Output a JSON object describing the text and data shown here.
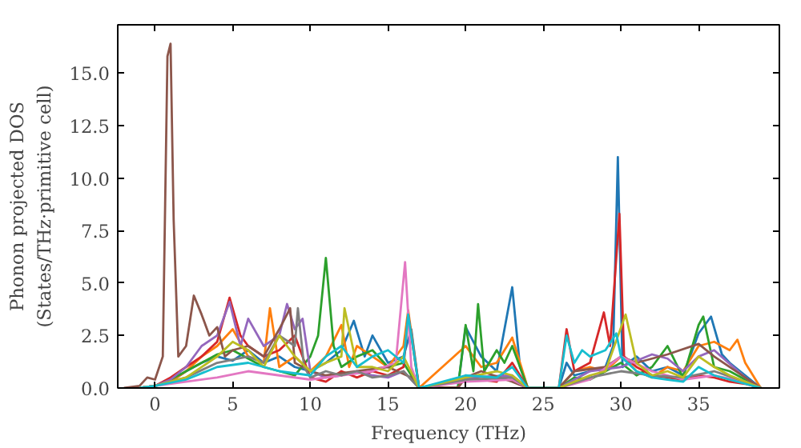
{
  "chart_data": {
    "type": "line",
    "xlabel": "Frequency (THz)",
    "ylabel": "Phonon projected DOS\n(States/THz·primitive cell)",
    "xlim": [
      -2.4,
      40.2
    ],
    "ylim": [
      0,
      17.3
    ],
    "xticks": [
      0,
      5,
      10,
      15,
      20,
      25,
      30,
      35
    ],
    "yticks": [
      {
        "value": 0,
        "label": "0.0"
      },
      {
        "value": 2.5,
        "label": "2.5"
      },
      {
        "value": 5,
        "label": "5.0"
      },
      {
        "value": 7.5,
        "label": "7.5"
      },
      {
        "value": 10,
        "label": "10.0"
      },
      {
        "value": 12.5,
        "label": "12.5"
      },
      {
        "value": 15,
        "label": "15.0"
      }
    ],
    "grid": false,
    "series": [
      {
        "color": "#1f77b4",
        "x": [
          -1,
          0,
          1,
          2,
          3,
          4,
          5,
          6,
          7,
          8,
          9,
          10,
          11,
          12,
          12.8,
          13.5,
          14,
          15,
          16,
          16.5,
          17,
          19.5,
          20,
          21,
          22,
          23,
          23.5,
          24,
          26,
          26.5,
          27,
          28,
          29,
          29.5,
          29.8,
          30.1,
          31,
          32,
          33,
          34,
          35,
          35.8,
          36.5,
          37,
          38,
          39
        ],
        "values": [
          0,
          0.1,
          0.3,
          0.8,
          1.2,
          1.5,
          1.3,
          1.8,
          1.2,
          1.5,
          1.0,
          0.8,
          1.2,
          1.8,
          3.2,
          1.5,
          2.5,
          1.2,
          1.5,
          2.8,
          0,
          0,
          2.9,
          1.5,
          0.8,
          4.8,
          1.0,
          0,
          0,
          1.2,
          0.6,
          0.8,
          1.0,
          2.0,
          11.0,
          1.0,
          1.5,
          0.8,
          1.0,
          0.6,
          2.6,
          3.4,
          1.6,
          1.2,
          0.6,
          0
        ]
      },
      {
        "color": "#ff7f0e",
        "x": [
          -1,
          0,
          1,
          2,
          3,
          4,
          5,
          6,
          7,
          7.4,
          8,
          9,
          10,
          11,
          12,
          12.5,
          13,
          14,
          15,
          16,
          16.3,
          17,
          20,
          21,
          22,
          23,
          24,
          26,
          27,
          28,
          29,
          30,
          30.5,
          31,
          32,
          33,
          34,
          35,
          36,
          37,
          37.5,
          38,
          39
        ],
        "values": [
          0,
          0.1,
          0.3,
          0.8,
          1.5,
          2.0,
          2.8,
          1.5,
          1.2,
          3.8,
          1.0,
          1.5,
          0.8,
          1.5,
          3.0,
          1.0,
          2.0,
          1.5,
          1.0,
          2.0,
          3.7,
          0,
          2.0,
          1.0,
          1.2,
          2.4,
          0,
          0,
          0.8,
          1.0,
          0.8,
          1.5,
          1.2,
          0.8,
          0.5,
          1.0,
          0.8,
          2.0,
          2.2,
          1.8,
          2.3,
          1.2,
          0
        ]
      },
      {
        "color": "#2ca02c",
        "x": [
          -1,
          0,
          1,
          2,
          3,
          4,
          5,
          6,
          7,
          8,
          9,
          10,
          10.5,
          11,
          11.5,
          12,
          13,
          14,
          15,
          16,
          17,
          19.5,
          20,
          20.5,
          20.8,
          21.2,
          22,
          22.5,
          23,
          24,
          26,
          27,
          28,
          29,
          30,
          31,
          32,
          33,
          34,
          35,
          35.3,
          36,
          37,
          38,
          39
        ],
        "values": [
          0,
          0.1,
          0.4,
          0.8,
          1.2,
          1.6,
          1.8,
          1.4,
          1.0,
          0.8,
          0.6,
          1.5,
          2.5,
          6.2,
          2.0,
          1.0,
          1.5,
          1.8,
          1.0,
          1.2,
          0,
          0,
          3.0,
          0.8,
          4.0,
          0.8,
          1.8,
          1.2,
          2.0,
          0,
          0,
          0.5,
          0.4,
          0.8,
          1.2,
          0.6,
          1.0,
          2.0,
          0.5,
          3.0,
          3.4,
          1.0,
          0.8,
          0.4,
          0
        ]
      },
      {
        "color": "#d62728",
        "x": [
          -1,
          0,
          1,
          2,
          3,
          4,
          4.8,
          5.5,
          6,
          7,
          8,
          9,
          10,
          11,
          12,
          13,
          14,
          15,
          16,
          16.3,
          17,
          19.5,
          20,
          21,
          22,
          23,
          24,
          26,
          26.5,
          27,
          28,
          28.9,
          29.3,
          29.9,
          30.2,
          31,
          32,
          33,
          34,
          35,
          36,
          37,
          38,
          39
        ],
        "values": [
          0,
          0.1,
          0.5,
          1.0,
          1.5,
          2.2,
          4.3,
          2.5,
          2.0,
          1.5,
          1.8,
          2.5,
          0.5,
          0.3,
          0.8,
          0.5,
          0.8,
          0.6,
          1.0,
          3.5,
          0,
          0,
          0.6,
          0.4,
          0.3,
          1.2,
          0,
          0,
          2.8,
          0.8,
          1.2,
          3.6,
          2.0,
          8.3,
          1.5,
          1.0,
          0.6,
          0.5,
          0.4,
          0.6,
          0.5,
          0.3,
          0.2,
          0
        ]
      },
      {
        "color": "#9467bd",
        "x": [
          -1,
          0,
          1,
          2,
          3,
          4,
          4.8,
          5.5,
          6,
          7,
          8,
          8.5,
          9,
          9.5,
          10,
          11,
          12,
          13,
          14,
          15,
          16,
          17,
          20,
          23,
          24,
          26,
          28,
          30,
          32,
          33,
          34,
          35,
          36,
          38,
          39
        ],
        "values": [
          0,
          0.1,
          0.4,
          1.0,
          2.0,
          2.5,
          4.1,
          2.0,
          3.3,
          2.0,
          2.5,
          4.0,
          2.8,
          3.3,
          0.8,
          0.5,
          0.6,
          0.8,
          0.6,
          0.5,
          0.8,
          0,
          0.5,
          0.6,
          0,
          0,
          0.8,
          1.0,
          1.6,
          1.4,
          0.8,
          1.5,
          1.8,
          0.5,
          0
        ]
      },
      {
        "color": "#8c564b",
        "x": [
          -2,
          -1,
          -0.5,
          0,
          0.5,
          0.8,
          1.0,
          1.2,
          1.5,
          2,
          2.5,
          3,
          3.5,
          4,
          4.5,
          5,
          6,
          7,
          8,
          8.7,
          9,
          10,
          11,
          13,
          15,
          16.5,
          17,
          19.5,
          20,
          21,
          23,
          24,
          26,
          27,
          29,
          30,
          31,
          33,
          35,
          36,
          38,
          39
        ],
        "values": [
          0,
          0.1,
          0.5,
          0.4,
          1.5,
          15.8,
          16.4,
          8,
          1.5,
          2,
          4.4,
          3.5,
          2.5,
          2.9,
          1.5,
          1.8,
          2,
          1.5,
          2.8,
          3.8,
          1.2,
          0.8,
          0.6,
          0.8,
          1,
          0.5,
          0,
          0,
          0.5,
          0.8,
          0.3,
          0,
          0,
          0.8,
          1,
          1.5,
          1.2,
          1.6,
          2.1,
          1.5,
          0.5,
          0
        ]
      },
      {
        "color": "#e377c2",
        "x": [
          -1,
          0,
          2,
          4,
          6,
          8,
          10,
          12,
          14,
          15.5,
          16.1,
          16.5,
          17,
          20,
          23,
          24,
          26,
          28,
          30,
          32,
          34,
          36,
          38,
          39
        ],
        "values": [
          0,
          0.1,
          0.3,
          0.5,
          0.8,
          0.6,
          0.4,
          0.6,
          0.8,
          1.2,
          6.0,
          1.0,
          0,
          0.3,
          0.4,
          0,
          0,
          0.4,
          1.5,
          0.8,
          0.4,
          0.6,
          0.3,
          0
        ]
      },
      {
        "color": "#7f7f7f",
        "x": [
          -1,
          0,
          2,
          4,
          6,
          7,
          8,
          9,
          9.2,
          9.6,
          10,
          11,
          12,
          13,
          14,
          15,
          16,
          17,
          20,
          23,
          24,
          26,
          28,
          30,
          32,
          34,
          36,
          38,
          39
        ],
        "values": [
          0,
          0.1,
          0.5,
          1.2,
          1.5,
          1.2,
          2.5,
          2.0,
          3.8,
          1.0,
          0.5,
          0.8,
          0.6,
          0.8,
          0.5,
          0.6,
          0.8,
          0,
          0.4,
          0.5,
          0,
          0,
          0.5,
          0.8,
          0.6,
          0.5,
          0.8,
          0.3,
          0
        ]
      },
      {
        "color": "#bcbd22",
        "x": [
          -1,
          0,
          2,
          4,
          5,
          6,
          7,
          8,
          8.5,
          9,
          10,
          11,
          12,
          12.2,
          13,
          14,
          15,
          16,
          17,
          20,
          22,
          23,
          24,
          26,
          28,
          29,
          30.3,
          31,
          32,
          33,
          34,
          35,
          36,
          37,
          38,
          39
        ],
        "values": [
          0,
          0.1,
          0.5,
          1.5,
          2.2,
          1.8,
          1.0,
          2.5,
          2.0,
          1.5,
          0.8,
          1.2,
          1.5,
          3.8,
          1.0,
          1.0,
          0.8,
          1.5,
          0,
          0.5,
          0.8,
          0.6,
          0,
          0,
          0.6,
          0.8,
          3.5,
          1.2,
          0.6,
          0.8,
          0.5,
          1.5,
          1.0,
          0.6,
          0.3,
          0
        ]
      },
      {
        "color": "#17becf",
        "x": [
          -1,
          0,
          2,
          4,
          6,
          8,
          10,
          11,
          12,
          13,
          14,
          15,
          16,
          16.3,
          17,
          20,
          22,
          23,
          24,
          26,
          26.5,
          27,
          27.5,
          28,
          29,
          29.7,
          30,
          31,
          32,
          33,
          34,
          35,
          36,
          37,
          38,
          39
        ],
        "values": [
          0,
          0.1,
          0.4,
          1.0,
          1.2,
          0.8,
          0.6,
          1.5,
          2.0,
          1.0,
          1.5,
          1.8,
          1.2,
          3.5,
          0,
          0.6,
          0.5,
          1.0,
          0,
          0,
          2.5,
          1.2,
          1.8,
          1.5,
          1.8,
          2.6,
          1.5,
          0.8,
          0.5,
          0.4,
          0.3,
          1.0,
          0.6,
          0.4,
          0.2,
          0
        ]
      }
    ]
  }
}
